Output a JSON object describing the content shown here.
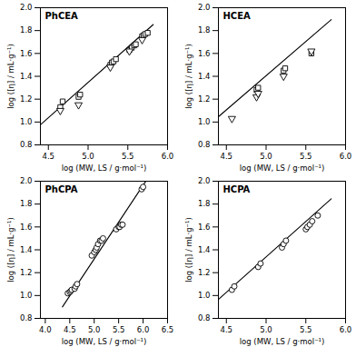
{
  "chart_data": [
    {
      "type": "scatter",
      "title": "PhCEA",
      "xlabel": "log (MW, LS / g·mol⁻¹)",
      "ylabel": "log ([η] / mL·g⁻¹)",
      "xlim": [
        4.4,
        6.0
      ],
      "ylim": [
        0.8,
        2.0
      ],
      "xticks": [
        4.5,
        {
          "value": 5.0,
          "label": "5.0"
        },
        5.5,
        {
          "value": 6.0,
          "label": "6.0"
        }
      ],
      "yticks": [
        0.8,
        {
          "value": 1.0,
          "label": "1.0"
        },
        1.2,
        1.4,
        1.6,
        1.8,
        {
          "value": 2.0,
          "label": "2.0"
        }
      ],
      "grid": false,
      "series": [
        {
          "type": "line",
          "color": "black",
          "line_style": "solid",
          "x": [
            4.4,
            5.82
          ],
          "values": [
            0.9752,
            1.85276
          ]
        },
        {
          "type": "scatter",
          "marker": "square",
          "color": "black",
          "x": [
            4.65,
            4.68,
            4.88,
            4.9,
            5.28,
            5.3,
            5.32,
            5.35,
            5.52,
            5.55,
            5.58,
            5.6,
            5.68,
            5.7,
            5.72,
            5.75
          ],
          "values": [
            1.13,
            1.18,
            1.22,
            1.24,
            1.5,
            1.52,
            1.53,
            1.55,
            1.63,
            1.65,
            1.67,
            1.68,
            1.75,
            1.76,
            1.77,
            1.78
          ]
        },
        {
          "type": "scatter",
          "marker": "triangle-down",
          "color": "black",
          "x": [
            4.65,
            4.88,
            5.28,
            5.52,
            5.68
          ],
          "values": [
            1.1,
            1.15,
            1.48,
            1.62,
            1.72
          ]
        }
      ]
    },
    {
      "type": "scatter",
      "title": "HCEA",
      "xlabel": "log (MW, LS / g·mol⁻¹)",
      "ylabel": "log ([η] / mL·g⁻¹)",
      "xlim": [
        4.4,
        6.0
      ],
      "ylim": [
        0.8,
        2.0
      ],
      "xticks": [
        4.5,
        {
          "value": 5.0,
          "label": "5.0"
        },
        5.5,
        {
          "value": 6.0,
          "label": "6.0"
        }
      ],
      "yticks": [
        0.8,
        {
          "value": 1.0,
          "label": "1.0"
        },
        1.2,
        1.4,
        1.6,
        1.8,
        {
          "value": 2.0,
          "label": "2.0"
        }
      ],
      "grid": false,
      "series": [
        {
          "type": "line",
          "color": "black",
          "line_style": "solid",
          "x": [
            4.4,
            5.82
          ],
          "values": [
            1.0462,
            1.89536
          ]
        },
        {
          "type": "scatter",
          "marker": "square",
          "color": "black",
          "x": [
            4.88,
            4.9,
            5.22,
            5.24,
            5.57
          ],
          "values": [
            1.28,
            1.3,
            1.45,
            1.47,
            1.6
          ]
        },
        {
          "type": "scatter",
          "marker": "triangle-down",
          "color": "black",
          "x": [
            4.57,
            4.88,
            4.9,
            5.22,
            5.57
          ],
          "values": [
            1.03,
            1.22,
            1.25,
            1.4,
            1.62
          ]
        }
      ]
    },
    {
      "type": "scatter",
      "title": "PhCPA",
      "xlabel": "log (MW, LS / g·mol⁻¹)",
      "ylabel": "log ([η] / mL·g⁻¹)",
      "xlim": [
        3.9,
        6.5
      ],
      "ylim": [
        0.8,
        2.0
      ],
      "xticks": [
        {
          "value": 4.0,
          "label": "4.0"
        },
        4.5,
        {
          "value": 5.0,
          "label": "5.0"
        },
        5.5,
        {
          "value": 6.0,
          "label": "6.0"
        },
        6.5
      ],
      "yticks": [
        0.8,
        {
          "value": 1.0,
          "label": "1.0"
        },
        1.2,
        1.4,
        1.6,
        1.8,
        {
          "value": 2.0,
          "label": "2.0"
        }
      ],
      "grid": false,
      "series": [
        {
          "type": "line",
          "color": "black",
          "line_style": "solid",
          "x": [
            4.35,
            6.05
          ],
          "values": [
            0.90075,
            1.99725
          ]
        },
        {
          "type": "scatter",
          "marker": "circle",
          "color": "black",
          "x": [
            4.46,
            4.5,
            4.52,
            4.54,
            4.6,
            4.62,
            4.65,
            4.95,
            5.0,
            5.03,
            5.05,
            5.08,
            5.12,
            5.15,
            5.18,
            5.45,
            5.5,
            5.52,
            5.55,
            5.58,
            5.97,
            6.0
          ],
          "values": [
            1.02,
            1.03,
            1.04,
            1.05,
            1.06,
            1.08,
            1.1,
            1.35,
            1.38,
            1.4,
            1.42,
            1.45,
            1.48,
            1.48,
            1.5,
            1.58,
            1.6,
            1.6,
            1.62,
            1.62,
            1.93,
            1.95
          ]
        }
      ]
    },
    {
      "type": "scatter",
      "title": "HCPA",
      "xlabel": "log (MW, LS / g·mol⁻¹)",
      "ylabel": "log ([η] / mL·g⁻¹)",
      "xlim": [
        4.4,
        6.0
      ],
      "ylim": [
        0.8,
        2.0
      ],
      "xticks": [
        4.5,
        {
          "value": 5.0,
          "label": "5.0"
        },
        5.5,
        {
          "value": 6.0,
          "label": "6.0"
        }
      ],
      "yticks": [
        0.8,
        {
          "value": 1.0,
          "label": "1.0"
        },
        1.2,
        1.4,
        1.6,
        1.8,
        {
          "value": 2.0,
          "label": "2.0"
        }
      ],
      "grid": false,
      "series": [
        {
          "type": "line",
          "color": "black",
          "line_style": "solid",
          "x": [
            4.4,
            5.82
          ],
          "values": [
            0.9656,
            1.8464
          ]
        },
        {
          "type": "scatter",
          "marker": "circle",
          "color": "black",
          "x": [
            4.57,
            4.6,
            4.9,
            4.93,
            5.2,
            5.22,
            5.25,
            5.5,
            5.52,
            5.55,
            5.58,
            5.65
          ],
          "values": [
            1.05,
            1.08,
            1.25,
            1.28,
            1.42,
            1.45,
            1.48,
            1.58,
            1.6,
            1.62,
            1.65,
            1.7
          ]
        }
      ]
    }
  ]
}
